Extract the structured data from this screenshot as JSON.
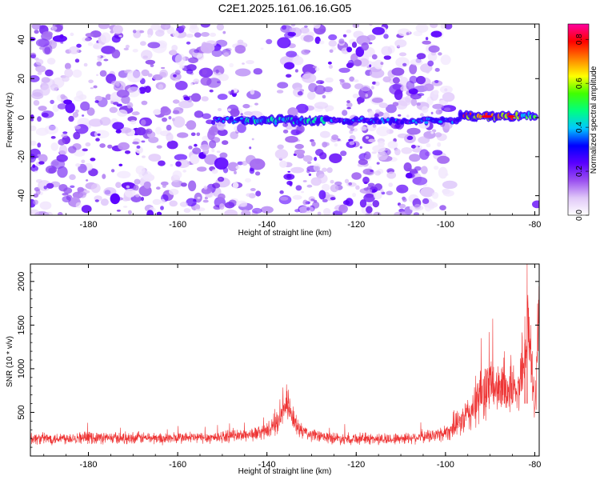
{
  "chart_data": [
    {
      "type": "heatmap",
      "title": "C2E1.2025.161.06.16.G05",
      "xlabel": "Height of straight line (km)",
      "ylabel": "Frequency (Hz)",
      "xlim": [
        -193,
        -79
      ],
      "ylim": [
        -50,
        48
      ],
      "x_ticks": [
        -180,
        -160,
        -140,
        -120,
        -100,
        -80
      ],
      "y_ticks": [
        -40,
        -20,
        0,
        20,
        40
      ],
      "signal_band": {
        "frequency_hz": 0,
        "x_start": -152,
        "x_end": -80
      },
      "noise_gaps": [
        [
          -142,
          -137
        ],
        [
          -99,
          -81
        ]
      ],
      "colorbar": {
        "label": "Normalized spectral amplitude",
        "range": [
          0,
          0.87
        ],
        "ticks": [
          0.0,
          0.2,
          0.4,
          0.6,
          0.8
        ],
        "colors": [
          "#ffffff",
          "#e0c8f8",
          "#9a4ff0",
          "#5a00ff",
          "#0000ff",
          "#00c8ff",
          "#00ff80",
          "#40ff00",
          "#ffff00",
          "#ff8000",
          "#ff0000",
          "#ff00a0"
        ]
      }
    },
    {
      "type": "line",
      "xlabel": "Height of straight line (km)",
      "ylabel": "SNR (10 * v/v)",
      "xlim": [
        -193,
        -79
      ],
      "ylim": [
        0,
        2200
      ],
      "x_ticks": [
        -180,
        -160,
        -140,
        -120,
        -100,
        -80
      ],
      "y_ticks": [
        500,
        1000,
        1500,
        2000
      ],
      "color": "#ee3333",
      "series": [
        {
          "name": "SNR",
          "x": [
            -193,
            -188,
            -183,
            -178,
            -173,
            -168,
            -163,
            -158,
            -153,
            -148,
            -143,
            -140,
            -138,
            -136.5,
            -135.5,
            -134.5,
            -133,
            -131,
            -128,
            -123,
            -118,
            -113,
            -108,
            -103,
            -100,
            -98,
            -96,
            -95,
            -93,
            -91.5,
            -90,
            -89,
            -88,
            -87,
            -86,
            -85,
            -84,
            -83,
            -82,
            -81.5,
            -81,
            -80.5,
            -80,
            -79.5,
            -79
          ],
          "y": [
            200,
            200,
            210,
            210,
            205,
            210,
            200,
            210,
            210,
            230,
            250,
            290,
            350,
            520,
            560,
            450,
            320,
            250,
            220,
            200,
            200,
            190,
            210,
            230,
            270,
            330,
            420,
            470,
            600,
            760,
            820,
            800,
            700,
            840,
            760,
            800,
            680,
            1000,
            1200,
            1550,
            1200,
            900,
            500,
            1150,
            1650
          ],
          "spread": [
            60,
            60,
            60,
            60,
            60,
            60,
            60,
            60,
            60,
            60,
            70,
            80,
            100,
            130,
            140,
            120,
            90,
            70,
            60,
            60,
            60,
            60,
            60,
            70,
            90,
            110,
            160,
            200,
            260,
            300,
            300,
            280,
            260,
            280,
            270,
            280,
            260,
            330,
            400,
            500,
            400,
            350,
            250,
            400,
            500
          ]
        }
      ]
    }
  ]
}
